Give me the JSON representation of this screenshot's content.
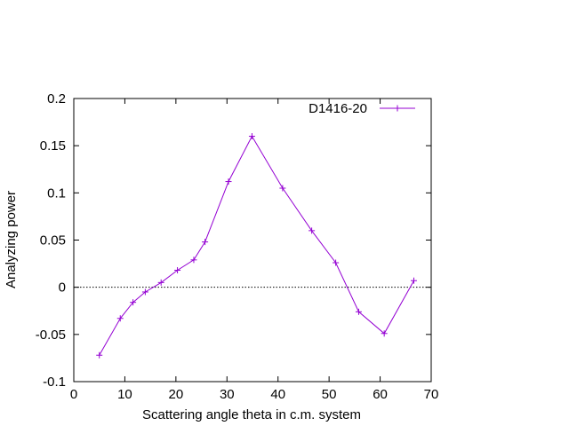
{
  "chart_data": {
    "type": "line",
    "xlabel": "Scattering angle theta in c.m. system",
    "ylabel": "Analyzing power",
    "xlim": [
      0,
      70
    ],
    "ylim": [
      -0.1,
      0.2
    ],
    "x_ticks": [
      "0",
      "10",
      "20",
      "30",
      "40",
      "50",
      "60",
      "70"
    ],
    "y_ticks": [
      "-0.1",
      "-0.05",
      "0",
      "0.05",
      "0.1",
      "0.15",
      "0.2"
    ],
    "grid": false,
    "zero_line": true,
    "legend_position": "top-right",
    "series": [
      {
        "name": "D1416-20",
        "color": "#9400d3",
        "marker": "plus",
        "x": [
          5.0,
          9.1,
          11.6,
          14.0,
          17.1,
          20.3,
          23.5,
          25.7,
          30.3,
          34.9,
          40.9,
          46.6,
          51.3,
          55.8,
          60.8,
          66.6
        ],
        "y": [
          -0.072,
          -0.033,
          -0.016,
          -0.005,
          0.005,
          0.018,
          0.029,
          0.048,
          0.112,
          0.16,
          0.105,
          0.06,
          0.026,
          -0.026,
          -0.049,
          0.007
        ]
      }
    ]
  }
}
